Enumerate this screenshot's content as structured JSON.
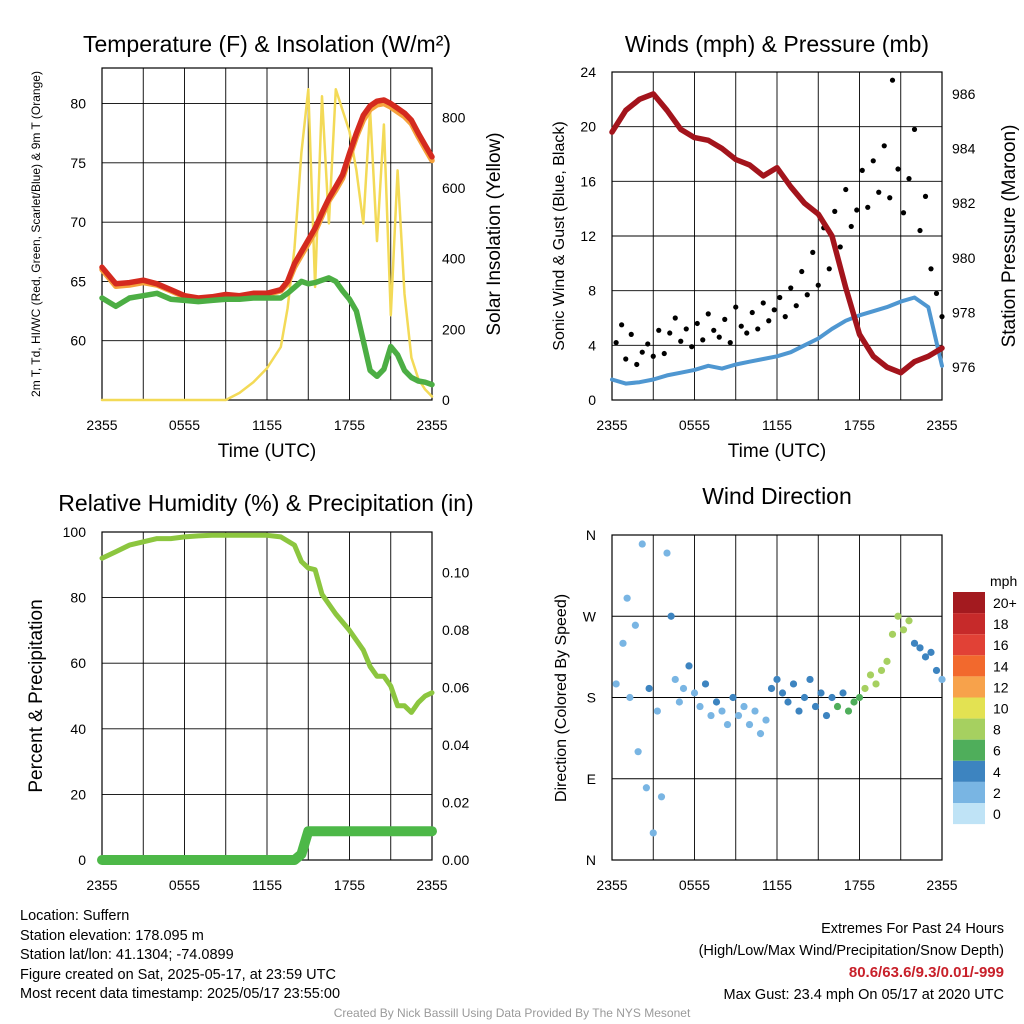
{
  "chart_data": [
    {
      "type": "line",
      "title": "Temperature (F) & Insolation (W/m²)",
      "xlabel": "Time (UTC)",
      "ylabel_left": "2m T, Td, HI/WC (Red, Green, Scarlet/Blue) & 9m T (Orange)",
      "ylabel_right": "Solar Insolation (Yellow)",
      "x_ticks": [
        "2355",
        "0555",
        "1155",
        "1755",
        "2355"
      ],
      "ylim": [
        55,
        83
      ],
      "y_ticks": [
        60,
        65,
        70,
        75,
        80
      ],
      "ylim_right": [
        0,
        940
      ],
      "y_ticks_right": [
        0,
        200,
        400,
        600,
        800
      ],
      "x_hours": [
        0,
        1,
        2,
        3,
        4,
        5,
        6,
        7,
        8,
        9,
        10,
        11,
        12,
        13,
        13.5,
        14,
        14.5,
        15,
        15.5,
        16,
        16.5,
        17,
        17.5,
        18,
        18.5,
        19,
        19.5,
        20,
        20.5,
        21,
        21.5,
        22,
        22.5,
        23,
        23.5,
        24
      ],
      "series": [
        {
          "name": "2m T",
          "color": "#d42a1f",
          "values": [
            66.2,
            64.8,
            64.9,
            65.1,
            64.8,
            64.3,
            63.8,
            63.6,
            63.7,
            63.9,
            63.8,
            64.0,
            64.0,
            64.3,
            65.0,
            66.5,
            67.5,
            68.5,
            69.5,
            70.8,
            72.0,
            73.0,
            74.0,
            75.8,
            77.5,
            79.0,
            79.8,
            80.2,
            80.3,
            80.0,
            79.6,
            79.2,
            78.6,
            77.5,
            76.5,
            75.5
          ]
        },
        {
          "name": "9m T",
          "color": "#f5a23c",
          "values": [
            66.0,
            64.6,
            64.7,
            64.9,
            64.7,
            64.2,
            63.7,
            63.5,
            63.6,
            63.8,
            63.7,
            63.9,
            63.9,
            64.2,
            64.8,
            66.2,
            67.2,
            68.2,
            69.2,
            70.5,
            71.8,
            72.7,
            73.7,
            75.5,
            77.2,
            78.6,
            79.5,
            79.9,
            80.0,
            79.7,
            79.3,
            78.9,
            78.3,
            77.2,
            76.2,
            75.2
          ]
        },
        {
          "name": "Td",
          "color": "#4cae44",
          "values": [
            63.6,
            62.9,
            63.6,
            63.8,
            64.0,
            63.5,
            63.4,
            63.3,
            63.4,
            63.5,
            63.5,
            63.6,
            63.6,
            63.6,
            64.0,
            64.5,
            65.0,
            64.8,
            64.9,
            65.1,
            65.3,
            65.0,
            64.2,
            63.5,
            62.5,
            60.0,
            57.5,
            57.0,
            57.6,
            59.5,
            58.8,
            57.5,
            56.9,
            56.6,
            56.5,
            56.3
          ]
        },
        {
          "name": "Solar Insolation",
          "color": "#f3da57",
          "axis": "right",
          "values": [
            0,
            0,
            0,
            0,
            0,
            0,
            0,
            0,
            0,
            0,
            20,
            50,
            90,
            150,
            260,
            430,
            700,
            880,
            320,
            860,
            500,
            880,
            820,
            760,
            650,
            500,
            820,
            450,
            780,
            240,
            650,
            300,
            120,
            60,
            30,
            10
          ]
        }
      ]
    },
    {
      "type": "line",
      "title": "Winds (mph) & Pressure (mb)",
      "xlabel": "Time (UTC)",
      "ylabel_left": "Sonic Wind & Gust (Blue, Black)",
      "ylabel_right": "Station Pressure (Maroon)",
      "x_ticks": [
        "2355",
        "0555",
        "1155",
        "1755",
        "2355"
      ],
      "ylim": [
        0,
        24
      ],
      "y_ticks": [
        0,
        4,
        8,
        12,
        16,
        20,
        24
      ],
      "ylim_right": [
        974.8,
        986.8
      ],
      "y_ticks_right": [
        976,
        978,
        980,
        982,
        984,
        986
      ],
      "x_hours": [
        0,
        1,
        2,
        3,
        4,
        5,
        6,
        7,
        8,
        9,
        10,
        11,
        12,
        13,
        14,
        15,
        16,
        17,
        18,
        19,
        20,
        21,
        22,
        23,
        24
      ],
      "series": [
        {
          "name": "Sonic Wind",
          "color": "#4f97d1",
          "values": [
            1.5,
            1.2,
            1.3,
            1.5,
            1.8,
            2.0,
            2.2,
            2.5,
            2.3,
            2.6,
            2.8,
            3.0,
            3.2,
            3.5,
            4.0,
            4.5,
            5.2,
            5.8,
            6.2,
            6.5,
            6.8,
            7.2,
            7.5,
            6.8,
            2.5
          ]
        },
        {
          "name": "Station Pressure",
          "color": "#a3141c",
          "axis": "right",
          "values": [
            984.6,
            985.4,
            985.8,
            986.0,
            985.4,
            984.7,
            984.4,
            984.3,
            984.0,
            983.6,
            983.4,
            983.0,
            983.3,
            982.6,
            982.0,
            981.6,
            980.8,
            978.9,
            977.2,
            976.4,
            976.0,
            975.8,
            976.2,
            976.4,
            976.7
          ]
        }
      ],
      "gusts": [
        [
          0.3,
          4.2
        ],
        [
          0.7,
          5.5
        ],
        [
          1.0,
          3.0
        ],
        [
          1.4,
          4.8
        ],
        [
          1.8,
          2.6
        ],
        [
          2.2,
          3.5
        ],
        [
          2.6,
          4.1
        ],
        [
          3.0,
          3.2
        ],
        [
          3.4,
          5.1
        ],
        [
          3.8,
          3.4
        ],
        [
          4.2,
          4.9
        ],
        [
          4.6,
          6.0
        ],
        [
          5.0,
          4.3
        ],
        [
          5.4,
          5.2
        ],
        [
          5.8,
          3.9
        ],
        [
          6.2,
          5.6
        ],
        [
          6.6,
          4.4
        ],
        [
          7.0,
          6.3
        ],
        [
          7.4,
          5.1
        ],
        [
          7.8,
          4.6
        ],
        [
          8.2,
          5.9
        ],
        [
          8.6,
          4.2
        ],
        [
          9.0,
          6.8
        ],
        [
          9.4,
          5.4
        ],
        [
          9.8,
          4.9
        ],
        [
          10.2,
          6.4
        ],
        [
          10.6,
          5.2
        ],
        [
          11.0,
          7.1
        ],
        [
          11.4,
          5.8
        ],
        [
          11.8,
          6.6
        ],
        [
          12.2,
          7.5
        ],
        [
          12.6,
          6.1
        ],
        [
          13.0,
          8.2
        ],
        [
          13.4,
          6.9
        ],
        [
          13.8,
          9.4
        ],
        [
          14.2,
          7.7
        ],
        [
          14.6,
          10.8
        ],
        [
          15.0,
          8.4
        ],
        [
          15.4,
          12.6
        ],
        [
          15.8,
          9.6
        ],
        [
          16.2,
          13.8
        ],
        [
          16.6,
          11.2
        ],
        [
          17.0,
          15.4
        ],
        [
          17.4,
          12.7
        ],
        [
          17.8,
          13.9
        ],
        [
          18.2,
          16.8
        ],
        [
          18.6,
          14.1
        ],
        [
          19.0,
          17.5
        ],
        [
          19.4,
          15.2
        ],
        [
          19.8,
          18.6
        ],
        [
          20.2,
          14.8
        ],
        [
          20.4,
          23.4
        ],
        [
          20.8,
          16.9
        ],
        [
          21.2,
          13.7
        ],
        [
          21.6,
          16.2
        ],
        [
          22.0,
          19.8
        ],
        [
          22.4,
          12.4
        ],
        [
          22.8,
          14.9
        ],
        [
          23.2,
          9.6
        ],
        [
          23.6,
          7.8
        ],
        [
          24.0,
          6.1
        ]
      ]
    },
    {
      "type": "line",
      "title": "Relative Humidity (%) & Precipitation (in)",
      "xlabel": "",
      "ylabel_left": "Percent & Precipitation",
      "x_ticks": [
        "2355",
        "0555",
        "1155",
        "1755",
        "2355"
      ],
      "ylim": [
        0,
        100
      ],
      "y_ticks": [
        0,
        20,
        40,
        60,
        80,
        100
      ],
      "ylim_right": [
        0,
        0.114
      ],
      "y_ticks_right": [
        "0.00",
        "0.02",
        "0.04",
        "0.06",
        "0.08",
        "0.10"
      ],
      "x_hours": [
        0,
        1,
        2,
        3,
        4,
        5,
        6,
        7,
        8,
        9,
        10,
        11,
        12,
        13,
        14,
        14.5,
        15,
        15.5,
        16,
        17,
        18,
        19,
        19.5,
        20,
        20.5,
        21,
        21.5,
        22,
        22.5,
        23,
        23.5,
        24
      ],
      "series": [
        {
          "name": "Relative Humidity",
          "color": "#8cc63f",
          "values": [
            92,
            94,
            96,
            97,
            98,
            98,
            98.5,
            98.8,
            99,
            99,
            99,
            99,
            99,
            98.5,
            96,
            91,
            89,
            88.5,
            81,
            75,
            70,
            64,
            59,
            56,
            56,
            53,
            47,
            47,
            45,
            48,
            50,
            51
          ]
        },
        {
          "name": "Precipitation",
          "color": "#4db848",
          "axis": "right",
          "values": [
            0,
            0,
            0,
            0,
            0,
            0,
            0,
            0,
            0,
            0,
            0,
            0,
            0,
            0,
            0,
            0.002,
            0.01,
            0.01,
            0.01,
            0.01,
            0.01,
            0.01,
            0.01,
            0.01,
            0.01,
            0.01,
            0.01,
            0.01,
            0.01,
            0.01,
            0.01,
            0.01
          ]
        }
      ]
    },
    {
      "type": "scatter",
      "title": "Wind Direction",
      "ylabel_left": "Direction (Colored By Speed)",
      "x_ticks": [
        "2355",
        "0555",
        "1155",
        "1755",
        "2355"
      ],
      "y_ticks": [
        "N",
        "E",
        "S",
        "W",
        "N"
      ],
      "ylim": [
        0,
        360
      ],
      "legend_title": "mph",
      "legend_labels": [
        "20+",
        "18",
        "16",
        "14",
        "12",
        "10",
        "8",
        "6",
        "4",
        "2",
        "0"
      ],
      "legend_colors": [
        "#a31a1f",
        "#c62a2a",
        "#e14136",
        "#f2692d",
        "#f7a24b",
        "#e3e252",
        "#a6d060",
        "#4fae5b",
        "#3d84c0",
        "#79b5e3",
        "#bfe3f6"
      ],
      "points": [
        [
          0.3,
          195,
          1
        ],
        [
          0.8,
          240,
          1
        ],
        [
          1.1,
          290,
          1
        ],
        [
          1.3,
          180,
          1
        ],
        [
          1.7,
          260,
          1
        ],
        [
          1.9,
          120,
          1
        ],
        [
          2.2,
          350,
          1
        ],
        [
          2.5,
          80,
          1
        ],
        [
          2.7,
          190,
          3
        ],
        [
          3.0,
          30,
          1
        ],
        [
          3.3,
          165,
          1
        ],
        [
          3.6,
          70,
          1
        ],
        [
          4.0,
          340,
          1
        ],
        [
          4.3,
          270,
          4
        ],
        [
          4.6,
          200,
          1
        ],
        [
          4.9,
          175,
          2
        ],
        [
          5.2,
          190,
          2
        ],
        [
          5.6,
          215,
          4
        ],
        [
          6.0,
          185,
          2
        ],
        [
          6.4,
          170,
          2
        ],
        [
          6.8,
          195,
          4
        ],
        [
          7.2,
          160,
          2
        ],
        [
          7.6,
          175,
          4
        ],
        [
          8.0,
          165,
          2
        ],
        [
          8.4,
          150,
          2
        ],
        [
          8.8,
          180,
          4
        ],
        [
          9.2,
          160,
          2
        ],
        [
          9.6,
          170,
          2
        ],
        [
          10.0,
          150,
          2
        ],
        [
          10.4,
          165,
          2
        ],
        [
          10.8,
          140,
          2
        ],
        [
          11.2,
          155,
          2
        ],
        [
          11.6,
          190,
          4
        ],
        [
          12.0,
          200,
          4
        ],
        [
          12.4,
          185,
          4
        ],
        [
          12.8,
          175,
          4
        ],
        [
          13.2,
          195,
          4
        ],
        [
          13.6,
          165,
          4
        ],
        [
          14.0,
          180,
          4
        ],
        [
          14.4,
          200,
          4
        ],
        [
          14.8,
          170,
          4
        ],
        [
          15.2,
          185,
          4
        ],
        [
          15.6,
          160,
          4
        ],
        [
          16.0,
          180,
          4
        ],
        [
          16.4,
          170,
          5
        ],
        [
          16.8,
          185,
          4
        ],
        [
          17.2,
          165,
          6
        ],
        [
          17.6,
          175,
          6
        ],
        [
          18.0,
          180,
          6
        ],
        [
          18.4,
          190,
          7
        ],
        [
          18.8,
          205,
          7
        ],
        [
          19.2,
          195,
          7
        ],
        [
          19.6,
          210,
          8
        ],
        [
          20.0,
          220,
          8
        ],
        [
          20.4,
          250,
          7
        ],
        [
          20.8,
          270,
          8
        ],
        [
          21.2,
          255,
          8
        ],
        [
          21.6,
          265,
          7
        ],
        [
          22.0,
          240,
          4
        ],
        [
          22.4,
          235,
          4
        ],
        [
          22.8,
          225,
          4
        ],
        [
          23.2,
          230,
          4
        ],
        [
          23.6,
          210,
          3
        ],
        [
          24.0,
          200,
          2
        ]
      ]
    }
  ],
  "info": {
    "location": "Location: Suffern",
    "elevation": "Station elevation: 178.095 m",
    "latlon": "Station lat/lon: 41.1304; -74.0899",
    "created": "Figure created on Sat, 2025-05-17, at 23:59 UTC",
    "recent": "Most recent data timestamp: 2025/05/17 23:55:00"
  },
  "extremes": {
    "heading": "Extremes For Past 24 Hours",
    "fields": "(High/Low/Max Wind/Precipitation/Snow Depth)",
    "values": "80.6/63.6/9.3/0.01/-999",
    "gust": "Max Gust: 23.4 mph On 05/17 at 2020 UTC"
  },
  "credit": "Created By Nick Bassill Using Data Provided By The NYS Mesonet"
}
